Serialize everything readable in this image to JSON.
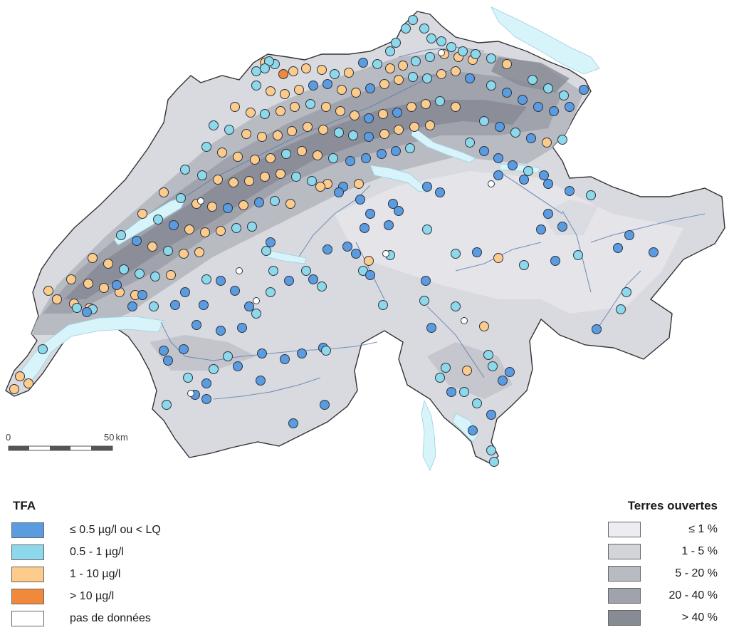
{
  "scale_bar": {
    "start_label": "0",
    "end_label": "50",
    "unit": "km"
  },
  "legend_tfa": {
    "title": "TFA",
    "items": [
      {
        "label": "≤ 0.5 µg/l ou < LQ",
        "color": "#5B9BE0"
      },
      {
        "label": "0.5 - 1 µg/l",
        "color": "#8DD8EA"
      },
      {
        "label": "1 - 10 µg/l",
        "color": "#FDCB8C"
      },
      {
        "label": "> 10 µg/l",
        "color": "#F08A3A"
      },
      {
        "label": "pas de données",
        "color": "#FFFFFF"
      }
    ]
  },
  "legend_terres": {
    "title": "Terres ouvertes",
    "items": [
      {
        "label": "≤ 1 %",
        "color": "#EDEDF1"
      },
      {
        "label": "1 - 5 %",
        "color": "#D3D4D9"
      },
      {
        "label": "5 - 20 %",
        "color": "#B9BBC3"
      },
      {
        "label": "20 - 40 %",
        "color": "#A0A3AC"
      },
      {
        "label": "> 40 %",
        "color": "#878B94"
      }
    ]
  },
  "colors": {
    "lake": "#D8F4FB",
    "river": "#5C7DAE",
    "border": "#333333"
  }
}
